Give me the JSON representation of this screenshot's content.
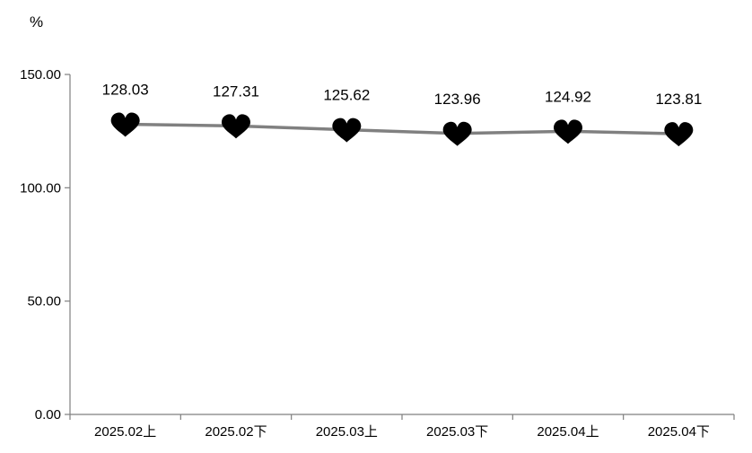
{
  "chart_data": {
    "type": "line",
    "unit": "%",
    "categories": [
      "2025.02上",
      "2025.02下",
      "2025.03上",
      "2025.03下",
      "2025.04上",
      "2025.04下"
    ],
    "series": [
      {
        "values": [
          128.03,
          127.31,
          125.62,
          123.96,
          124.92,
          123.81
        ],
        "data_labels": [
          "128.03",
          "127.31",
          "125.62",
          "123.96",
          "124.92",
          "123.81"
        ],
        "line_color": "#808080",
        "marker": "heart-icon",
        "marker_color": "#000000"
      }
    ],
    "y_ticks": [
      "0.00",
      "50.00",
      "100.00",
      "150.00"
    ],
    "ylim": [
      0,
      150
    ],
    "grid": false,
    "legend": "none"
  }
}
